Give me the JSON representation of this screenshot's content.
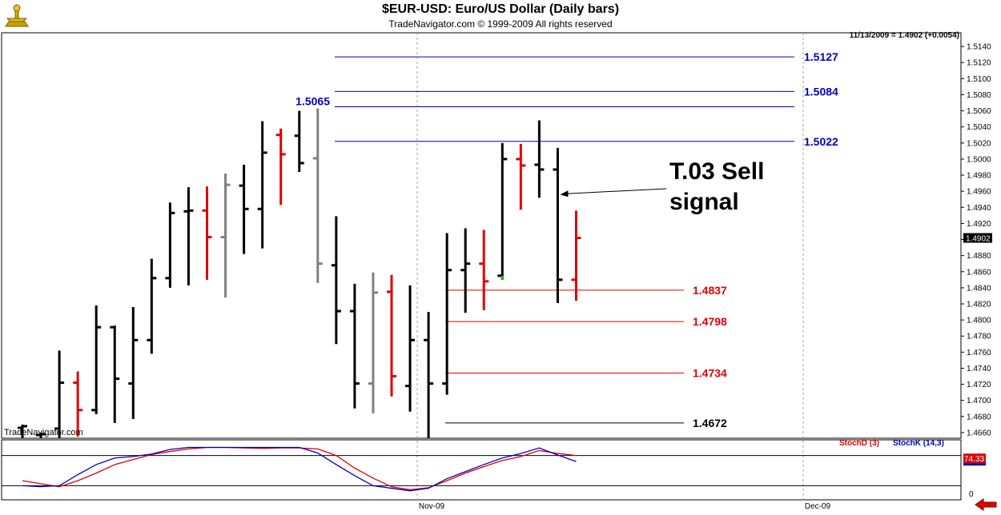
{
  "header": {
    "title": "$EUR-USD:  Euro/US Dollar  (Daily bars)",
    "subtitle": "TradeNavigator.com © 1999-2009 All rights reserved",
    "quote": "11/13/2009 = 1.4902 (+0.0054)",
    "watermark": "TradeNavigator.com"
  },
  "colors": {
    "up": "#000000",
    "down": "#e00000",
    "neutral": "#808080",
    "signal_bar": "#00c000",
    "stoch_d": "#e00000",
    "stoch_k": "#0000c0",
    "fib_up": "#0000c0",
    "fib_down": "#e00000"
  },
  "chart_data": [
    {
      "type": "ohlc",
      "title": "$EUR-USD:  Euro/US Dollar  (Daily bars)",
      "x_labels": [
        "Nov-09",
        "Dec-09"
      ],
      "y_ticks": [
        "1.5140",
        "1.5120",
        "1.5100",
        "1.5080",
        "1.5060",
        "1.5040",
        "1.5020",
        "1.5000",
        "1.4980",
        "1.4960",
        "1.4940",
        "1.4920",
        "1.4900",
        "1.4880",
        "1.4860",
        "1.4840",
        "1.4820",
        "1.4800",
        "1.4780",
        "1.4760",
        "1.4740",
        "1.4720",
        "1.4700",
        "1.4680",
        "1.4660"
      ],
      "ylim": [
        1.4653,
        1.5157
      ],
      "last_price": "1.4902",
      "bars": [
        {
          "h": 1.467,
          "l": 1.4653,
          "o": 1.4666,
          "c": 1.4668,
          "color": "up"
        },
        {
          "h": 1.466,
          "l": 1.4653,
          "o": 1.4657,
          "c": 1.4658,
          "color": "up"
        },
        {
          "h": 1.4762,
          "l": 1.4653,
          "o": 1.4665,
          "c": 1.4722,
          "color": "up"
        },
        {
          "h": 1.4736,
          "l": 1.4655,
          "o": 1.4722,
          "c": 1.4688,
          "color": "down"
        },
        {
          "h": 1.4818,
          "l": 1.4683,
          "o": 1.4688,
          "c": 1.4791,
          "color": "up"
        },
        {
          "h": 1.4793,
          "l": 1.4672,
          "o": 1.4791,
          "c": 1.4727,
          "color": "up"
        },
        {
          "h": 1.4816,
          "l": 1.4677,
          "o": 1.4721,
          "c": 1.4775,
          "color": "up"
        },
        {
          "h": 1.4876,
          "l": 1.4758,
          "o": 1.4775,
          "c": 1.4852,
          "color": "up"
        },
        {
          "h": 1.4946,
          "l": 1.484,
          "o": 1.4852,
          "c": 1.4933,
          "color": "up"
        },
        {
          "h": 1.4965,
          "l": 1.4843,
          "o": 1.4935,
          "c": 1.4936,
          "color": "up"
        },
        {
          "h": 1.4966,
          "l": 1.485,
          "o": 1.4936,
          "c": 1.4903,
          "color": "down"
        },
        {
          "h": 1.4982,
          "l": 1.4828,
          "o": 1.4903,
          "c": 1.4968,
          "color": "neutral"
        },
        {
          "h": 1.4993,
          "l": 1.4882,
          "o": 1.4967,
          "c": 1.4938,
          "color": "up"
        },
        {
          "h": 1.5047,
          "l": 1.4889,
          "o": 1.4938,
          "c": 1.5008,
          "color": "up"
        },
        {
          "h": 1.5038,
          "l": 1.4943,
          "o": 1.503,
          "c": 1.5006,
          "color": "down"
        },
        {
          "h": 1.506,
          "l": 1.4984,
          "o": 1.5029,
          "c": 1.4995,
          "color": "up"
        },
        {
          "h": 1.5063,
          "l": 1.4846,
          "o": 1.5001,
          "c": 1.487,
          "color": "neutral"
        },
        {
          "h": 1.4929,
          "l": 1.477,
          "o": 1.4868,
          "c": 1.4811,
          "color": "up"
        },
        {
          "h": 1.4845,
          "l": 1.469,
          "o": 1.4811,
          "c": 1.4721,
          "color": "up"
        },
        {
          "h": 1.4859,
          "l": 1.4684,
          "o": 1.4721,
          "c": 1.4834,
          "color": "neutral"
        },
        {
          "h": 1.4856,
          "l": 1.4705,
          "o": 1.4835,
          "c": 1.473,
          "color": "down"
        },
        {
          "h": 1.4843,
          "l": 1.4686,
          "o": 1.4718,
          "c": 1.4775,
          "color": "up"
        },
        {
          "h": 1.481,
          "l": 1.4653,
          "o": 1.4775,
          "c": 1.4721,
          "color": "up"
        },
        {
          "h": 1.4908,
          "l": 1.4707,
          "o": 1.4721,
          "c": 1.4862,
          "color": "up"
        },
        {
          "h": 1.4914,
          "l": 1.4809,
          "o": 1.4862,
          "c": 1.487,
          "color": "up"
        },
        {
          "h": 1.4912,
          "l": 1.4812,
          "o": 1.487,
          "c": 1.4848,
          "color": "down"
        },
        {
          "h": 1.502,
          "l": 1.485,
          "o": 1.4855,
          "c": 1.5,
          "color": "up",
          "signal": true
        },
        {
          "h": 1.5019,
          "l": 1.4937,
          "o": 1.5,
          "c": 1.4992,
          "color": "down"
        },
        {
          "h": 1.5048,
          "l": 1.4952,
          "o": 1.4993,
          "c": 1.4987,
          "color": "up"
        },
        {
          "h": 1.5014,
          "l": 1.4821,
          "o": 1.4987,
          "c": 1.485,
          "color": "up"
        },
        {
          "h": 1.4936,
          "l": 1.4824,
          "o": 1.485,
          "c": 1.4902,
          "color": "down"
        }
      ],
      "levels": [
        {
          "value": 1.5127,
          "label": "1.5127",
          "group": "up"
        },
        {
          "value": 1.5084,
          "label": "1.5084",
          "group": "up"
        },
        {
          "value": 1.5065,
          "label": "1.5065",
          "group": "up",
          "label_side": "left"
        },
        {
          "value": 1.5022,
          "label": "1.5022",
          "group": "up"
        },
        {
          "value": 1.4837,
          "label": "1.4837",
          "group": "down"
        },
        {
          "value": 1.4798,
          "label": "1.4798",
          "group": "down"
        },
        {
          "value": 1.4734,
          "label": "1.4734",
          "group": "down"
        },
        {
          "value": 1.4672,
          "label": "1.4672",
          "group": "base"
        }
      ],
      "annotation": {
        "lines": [
          "T.03 Sell",
          "signal"
        ],
        "target_bar": 29,
        "target_value": 1.4956
      }
    },
    {
      "type": "line",
      "series": [
        {
          "name": "StochD (3)",
          "values": [
            30,
            24,
            18,
            30,
            45,
            62,
            72,
            82,
            88,
            93,
            96,
            96,
            95,
            94,
            95,
            95,
            93,
            80,
            55,
            35,
            18,
            12,
            16,
            30,
            45,
            58,
            70,
            78,
            90,
            84,
            80
          ]
        },
        {
          "name": "StochK (14,3)",
          "values": [
            20,
            18,
            20,
            42,
            62,
            75,
            78,
            83,
            92,
            96,
            96,
            96,
            96,
            96,
            96,
            96,
            85,
            62,
            40,
            20,
            15,
            10,
            15,
            34,
            48,
            62,
            75,
            84,
            95,
            81,
            68
          ]
        }
      ],
      "current_value": "74.33",
      "y_ticks": [
        "0"
      ]
    }
  ]
}
